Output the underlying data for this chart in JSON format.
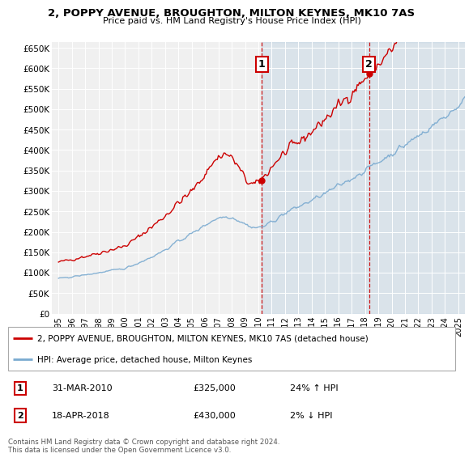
{
  "title": "2, POPPY AVENUE, BROUGHTON, MILTON KEYNES, MK10 7AS",
  "subtitle": "Price paid vs. HM Land Registry's House Price Index (HPI)",
  "ylabel_ticks": [
    "£0",
    "£50K",
    "£100K",
    "£150K",
    "£200K",
    "£250K",
    "£300K",
    "£350K",
    "£400K",
    "£450K",
    "£500K",
    "£550K",
    "£600K",
    "£650K"
  ],
  "ytick_vals": [
    0,
    50000,
    100000,
    150000,
    200000,
    250000,
    300000,
    350000,
    400000,
    450000,
    500000,
    550000,
    600000,
    650000
  ],
  "ylim": [
    0,
    665000
  ],
  "xlim_start": 1994.5,
  "xlim_end": 2025.5,
  "house_color": "#cc0000",
  "hpi_color": "#7aaad0",
  "legend_house": "2, POPPY AVENUE, BROUGHTON, MILTON KEYNES, MK10 7AS (detached house)",
  "legend_hpi": "HPI: Average price, detached house, Milton Keynes",
  "transaction1_date": "31-MAR-2010",
  "transaction1_price": "£325,000",
  "transaction1_hpi": "24% ↑ HPI",
  "transaction1_year": 2010.25,
  "transaction1_value": 325000,
  "transaction2_date": "18-APR-2018",
  "transaction2_price": "£430,000",
  "transaction2_hpi": "2% ↓ HPI",
  "transaction2_year": 2018.3,
  "transaction2_value": 430000,
  "vline1_x": 2010.25,
  "vline2_x": 2018.3,
  "footnote": "Contains HM Land Registry data © Crown copyright and database right 2024.\nThis data is licensed under the Open Government Licence v3.0.",
  "background_color": "#ffffff",
  "plot_bg_color": "#f0f0f0"
}
